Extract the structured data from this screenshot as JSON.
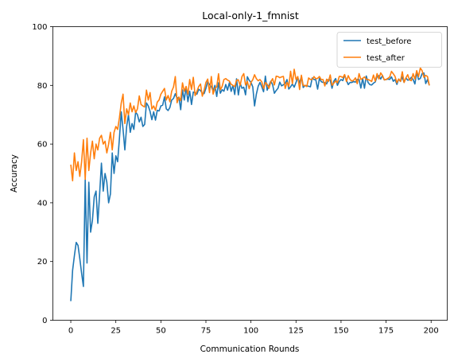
{
  "chart_data": {
    "type": "line",
    "title": "Local-only-1_fmnist",
    "xlabel": "Communication Rounds",
    "ylabel": "Accuracy",
    "xlim": [
      -9.95,
      208.95
    ],
    "ylim": [
      0,
      100
    ],
    "xticks": [
      0,
      25,
      50,
      75,
      100,
      125,
      150,
      175,
      200
    ],
    "yticks": [
      0,
      20,
      40,
      60,
      80,
      100
    ],
    "grid": false,
    "legend_position": "top-right",
    "series": [
      {
        "name": "test_before",
        "color": "#1f77b4",
        "keypoints": [
          [
            0,
            6.5
          ],
          [
            1,
            17
          ],
          [
            2,
            22
          ],
          [
            3,
            26.5
          ],
          [
            4,
            25.5
          ],
          [
            5,
            21
          ],
          [
            6,
            16
          ],
          [
            7,
            11.5
          ],
          [
            8,
            48
          ],
          [
            9,
            19.5
          ],
          [
            10,
            47
          ],
          [
            11,
            30
          ],
          [
            12,
            34
          ],
          [
            13,
            42
          ],
          [
            14,
            44
          ],
          [
            15,
            33
          ],
          [
            16,
            43
          ],
          [
            17,
            53.5
          ],
          [
            18,
            44
          ],
          [
            19,
            50
          ],
          [
            20,
            47
          ],
          [
            21,
            40
          ],
          [
            22,
            43
          ],
          [
            23,
            57
          ],
          [
            24,
            50
          ],
          [
            25,
            56
          ],
          [
            26,
            54
          ],
          [
            27,
            62
          ],
          [
            28,
            71
          ],
          [
            29,
            65
          ],
          [
            30,
            58
          ],
          [
            31,
            66
          ],
          [
            32,
            70
          ],
          [
            33,
            64
          ],
          [
            34,
            67
          ],
          [
            35,
            65
          ],
          [
            37,
            70
          ],
          [
            40,
            66
          ],
          [
            43,
            73
          ],
          [
            46,
            71
          ],
          [
            50,
            73
          ],
          [
            53,
            72
          ],
          [
            56,
            75
          ],
          [
            60,
            76
          ],
          [
            63,
            75
          ],
          [
            66,
            78
          ],
          [
            70,
            77
          ],
          [
            75,
            79
          ],
          [
            80,
            80
          ],
          [
            85,
            78
          ],
          [
            90,
            80
          ],
          [
            95,
            79
          ],
          [
            100,
            81
          ],
          [
            102,
            73
          ],
          [
            105,
            81
          ],
          [
            110,
            80
          ],
          [
            115,
            79
          ],
          [
            120,
            82
          ],
          [
            125,
            81
          ],
          [
            130,
            80
          ],
          [
            135,
            82
          ],
          [
            140,
            81
          ],
          [
            145,
            79
          ],
          [
            150,
            82
          ],
          [
            155,
            81
          ],
          [
            160,
            82
          ],
          [
            165,
            81
          ],
          [
            170,
            83
          ],
          [
            175,
            82
          ],
          [
            180,
            82
          ],
          [
            185,
            81
          ],
          [
            190,
            82
          ],
          [
            195,
            84
          ],
          [
            198,
            82
          ],
          [
            199,
            80
          ]
        ],
        "base": [
          [
            30,
            66
          ],
          [
            50,
            73
          ],
          [
            80,
            79
          ],
          [
            110,
            80
          ],
          [
            150,
            81.5
          ],
          [
            199,
            82
          ]
        ],
        "amp": [
          [
            30,
            4.5
          ],
          [
            60,
            3.2
          ],
          [
            100,
            2.4
          ],
          [
            199,
            1.8
          ]
        ]
      },
      {
        "name": "test_after",
        "color": "#ff7f0e",
        "keypoints": [
          [
            0,
            53
          ],
          [
            1,
            47.5
          ],
          [
            2,
            57
          ],
          [
            3,
            51
          ],
          [
            4,
            54
          ],
          [
            5,
            49
          ],
          [
            6,
            54
          ],
          [
            7,
            61.5
          ],
          [
            8,
            48
          ],
          [
            9,
            62
          ],
          [
            10,
            51
          ],
          [
            11,
            57
          ],
          [
            12,
            61
          ],
          [
            13,
            55
          ],
          [
            14,
            60
          ],
          [
            15,
            58
          ],
          [
            16,
            62
          ],
          [
            17,
            63
          ],
          [
            18,
            60
          ],
          [
            19,
            61
          ],
          [
            20,
            57
          ],
          [
            21,
            60
          ],
          [
            22,
            64
          ],
          [
            23,
            58
          ],
          [
            24,
            64
          ],
          [
            25,
            66
          ],
          [
            26,
            65
          ],
          [
            27,
            69
          ],
          [
            28,
            74
          ],
          [
            29,
            77
          ],
          [
            30,
            67
          ],
          [
            31,
            72
          ],
          [
            32,
            70
          ],
          [
            33,
            74
          ],
          [
            34,
            71
          ],
          [
            35,
            73
          ],
          [
            37,
            72
          ],
          [
            40,
            73
          ],
          [
            43,
            75
          ],
          [
            46,
            73
          ],
          [
            50,
            77
          ],
          [
            53,
            75
          ],
          [
            56,
            78
          ],
          [
            58,
            83
          ],
          [
            60,
            76
          ],
          [
            63,
            78
          ],
          [
            66,
            82
          ],
          [
            70,
            78
          ],
          [
            75,
            81
          ],
          [
            78,
            83
          ],
          [
            80,
            79
          ],
          [
            85,
            82
          ],
          [
            90,
            80
          ],
          [
            95,
            83
          ],
          [
            100,
            81
          ],
          [
            105,
            82
          ],
          [
            110,
            79
          ],
          [
            115,
            83
          ],
          [
            120,
            81
          ],
          [
            124,
            85.5
          ],
          [
            125,
            82
          ],
          [
            130,
            80
          ],
          [
            135,
            83
          ],
          [
            140,
            82
          ],
          [
            145,
            80
          ],
          [
            150,
            83
          ],
          [
            155,
            82
          ],
          [
            160,
            84
          ],
          [
            165,
            82
          ],
          [
            170,
            84
          ],
          [
            175,
            82
          ],
          [
            180,
            83
          ],
          [
            185,
            81
          ],
          [
            190,
            84
          ],
          [
            195,
            85
          ],
          [
            198,
            83
          ],
          [
            199,
            80
          ]
        ],
        "base": [
          [
            30,
            72
          ],
          [
            50,
            75
          ],
          [
            80,
            80.5
          ],
          [
            110,
            81
          ],
          [
            150,
            82.5
          ],
          [
            199,
            83
          ]
        ],
        "amp": [
          [
            30,
            4.0
          ],
          [
            60,
            3.2
          ],
          [
            100,
            2.4
          ],
          [
            199,
            1.8
          ]
        ]
      }
    ]
  }
}
